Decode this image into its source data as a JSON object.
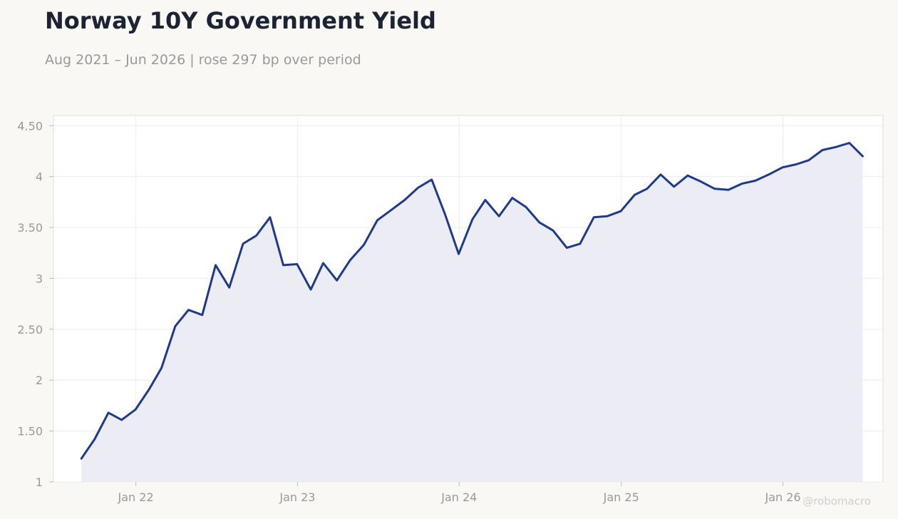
{
  "title": "Norway 10Y Government Yield",
  "subtitle": "Aug 2021 – Jun 2026 | rose 297 bp over period",
  "watermark": "@robomacro",
  "colors": {
    "line": "#1f3a8a",
    "area": "#ecedf4",
    "background": "#f9f8f5",
    "plot_background": "#ffffff",
    "grid": "#ececec",
    "tick_text": "#999999"
  },
  "chart_data": {
    "type": "area",
    "title": "Norway 10Y Government Yield",
    "subtitle": "Aug 2021 – Jun 2026 | rose 297 bp over period",
    "xlabel": "",
    "ylabel": "",
    "ylim": [
      1,
      4.6
    ],
    "xlim": [
      "2021-06-29",
      "2026-08-15"
    ],
    "grid": true,
    "legend": "none",
    "y_ticks": [
      {
        "value": 1,
        "label": "1"
      },
      {
        "value": 1.5,
        "label": "1.50"
      },
      {
        "value": 2,
        "label": "2"
      },
      {
        "value": 2.5,
        "label": "2.50"
      },
      {
        "value": 3,
        "label": "3"
      },
      {
        "value": 3.5,
        "label": "3.50"
      },
      {
        "value": 4,
        "label": "4"
      },
      {
        "value": 4.5,
        "label": "4.50"
      }
    ],
    "x_ticks": [
      {
        "value": "2022-01-01",
        "label": "Jan 22"
      },
      {
        "value": "2023-01-01",
        "label": "Jan 23"
      },
      {
        "value": "2024-01-01",
        "label": "Jan 24"
      },
      {
        "value": "2025-01-01",
        "label": "Jan 25"
      },
      {
        "value": "2026-01-01",
        "label": "Jan 26"
      }
    ],
    "series": [
      {
        "x": [
          "2021-08-31",
          "2021-09-30",
          "2021-10-31",
          "2021-11-30",
          "2021-12-31",
          "2022-01-31",
          "2022-02-28",
          "2022-03-31",
          "2022-04-30",
          "2022-05-31",
          "2022-06-30",
          "2022-07-31",
          "2022-08-31",
          "2022-09-30",
          "2022-10-31",
          "2022-11-30",
          "2022-12-31",
          "2023-01-31",
          "2023-02-28",
          "2023-03-31",
          "2023-04-30",
          "2023-05-31",
          "2023-06-30",
          "2023-07-31",
          "2023-08-31",
          "2023-09-30",
          "2023-10-31",
          "2023-11-30",
          "2023-12-31",
          "2024-01-31",
          "2024-02-29",
          "2024-03-31",
          "2024-04-30",
          "2024-05-31",
          "2024-06-30",
          "2024-07-31",
          "2024-08-31",
          "2024-09-30",
          "2024-10-31",
          "2024-11-30",
          "2024-12-31",
          "2025-01-31",
          "2025-02-28",
          "2025-03-31",
          "2025-04-30",
          "2025-05-31",
          "2025-06-30",
          "2025-07-31",
          "2025-08-31",
          "2025-09-30",
          "2025-10-31",
          "2025-11-30",
          "2025-12-31",
          "2026-01-31",
          "2026-02-28",
          "2026-03-31",
          "2026-04-30",
          "2026-05-31",
          "2026-06-30"
        ],
        "values": [
          1.23,
          1.42,
          1.68,
          1.61,
          1.71,
          1.91,
          2.12,
          2.53,
          2.69,
          2.64,
          3.13,
          2.91,
          3.34,
          3.42,
          3.6,
          3.13,
          3.14,
          2.89,
          3.15,
          2.98,
          3.18,
          3.33,
          3.57,
          3.67,
          3.77,
          3.89,
          3.97,
          3.63,
          3.24,
          3.58,
          3.77,
          3.61,
          3.79,
          3.7,
          3.55,
          3.47,
          3.3,
          3.34,
          3.6,
          3.61,
          3.66,
          3.82,
          3.88,
          4.02,
          3.9,
          4.01,
          3.95,
          3.88,
          3.87,
          3.93,
          3.96,
          4.02,
          4.09,
          4.12,
          4.16,
          4.26,
          4.29,
          4.33,
          4.2
        ]
      }
    ]
  }
}
